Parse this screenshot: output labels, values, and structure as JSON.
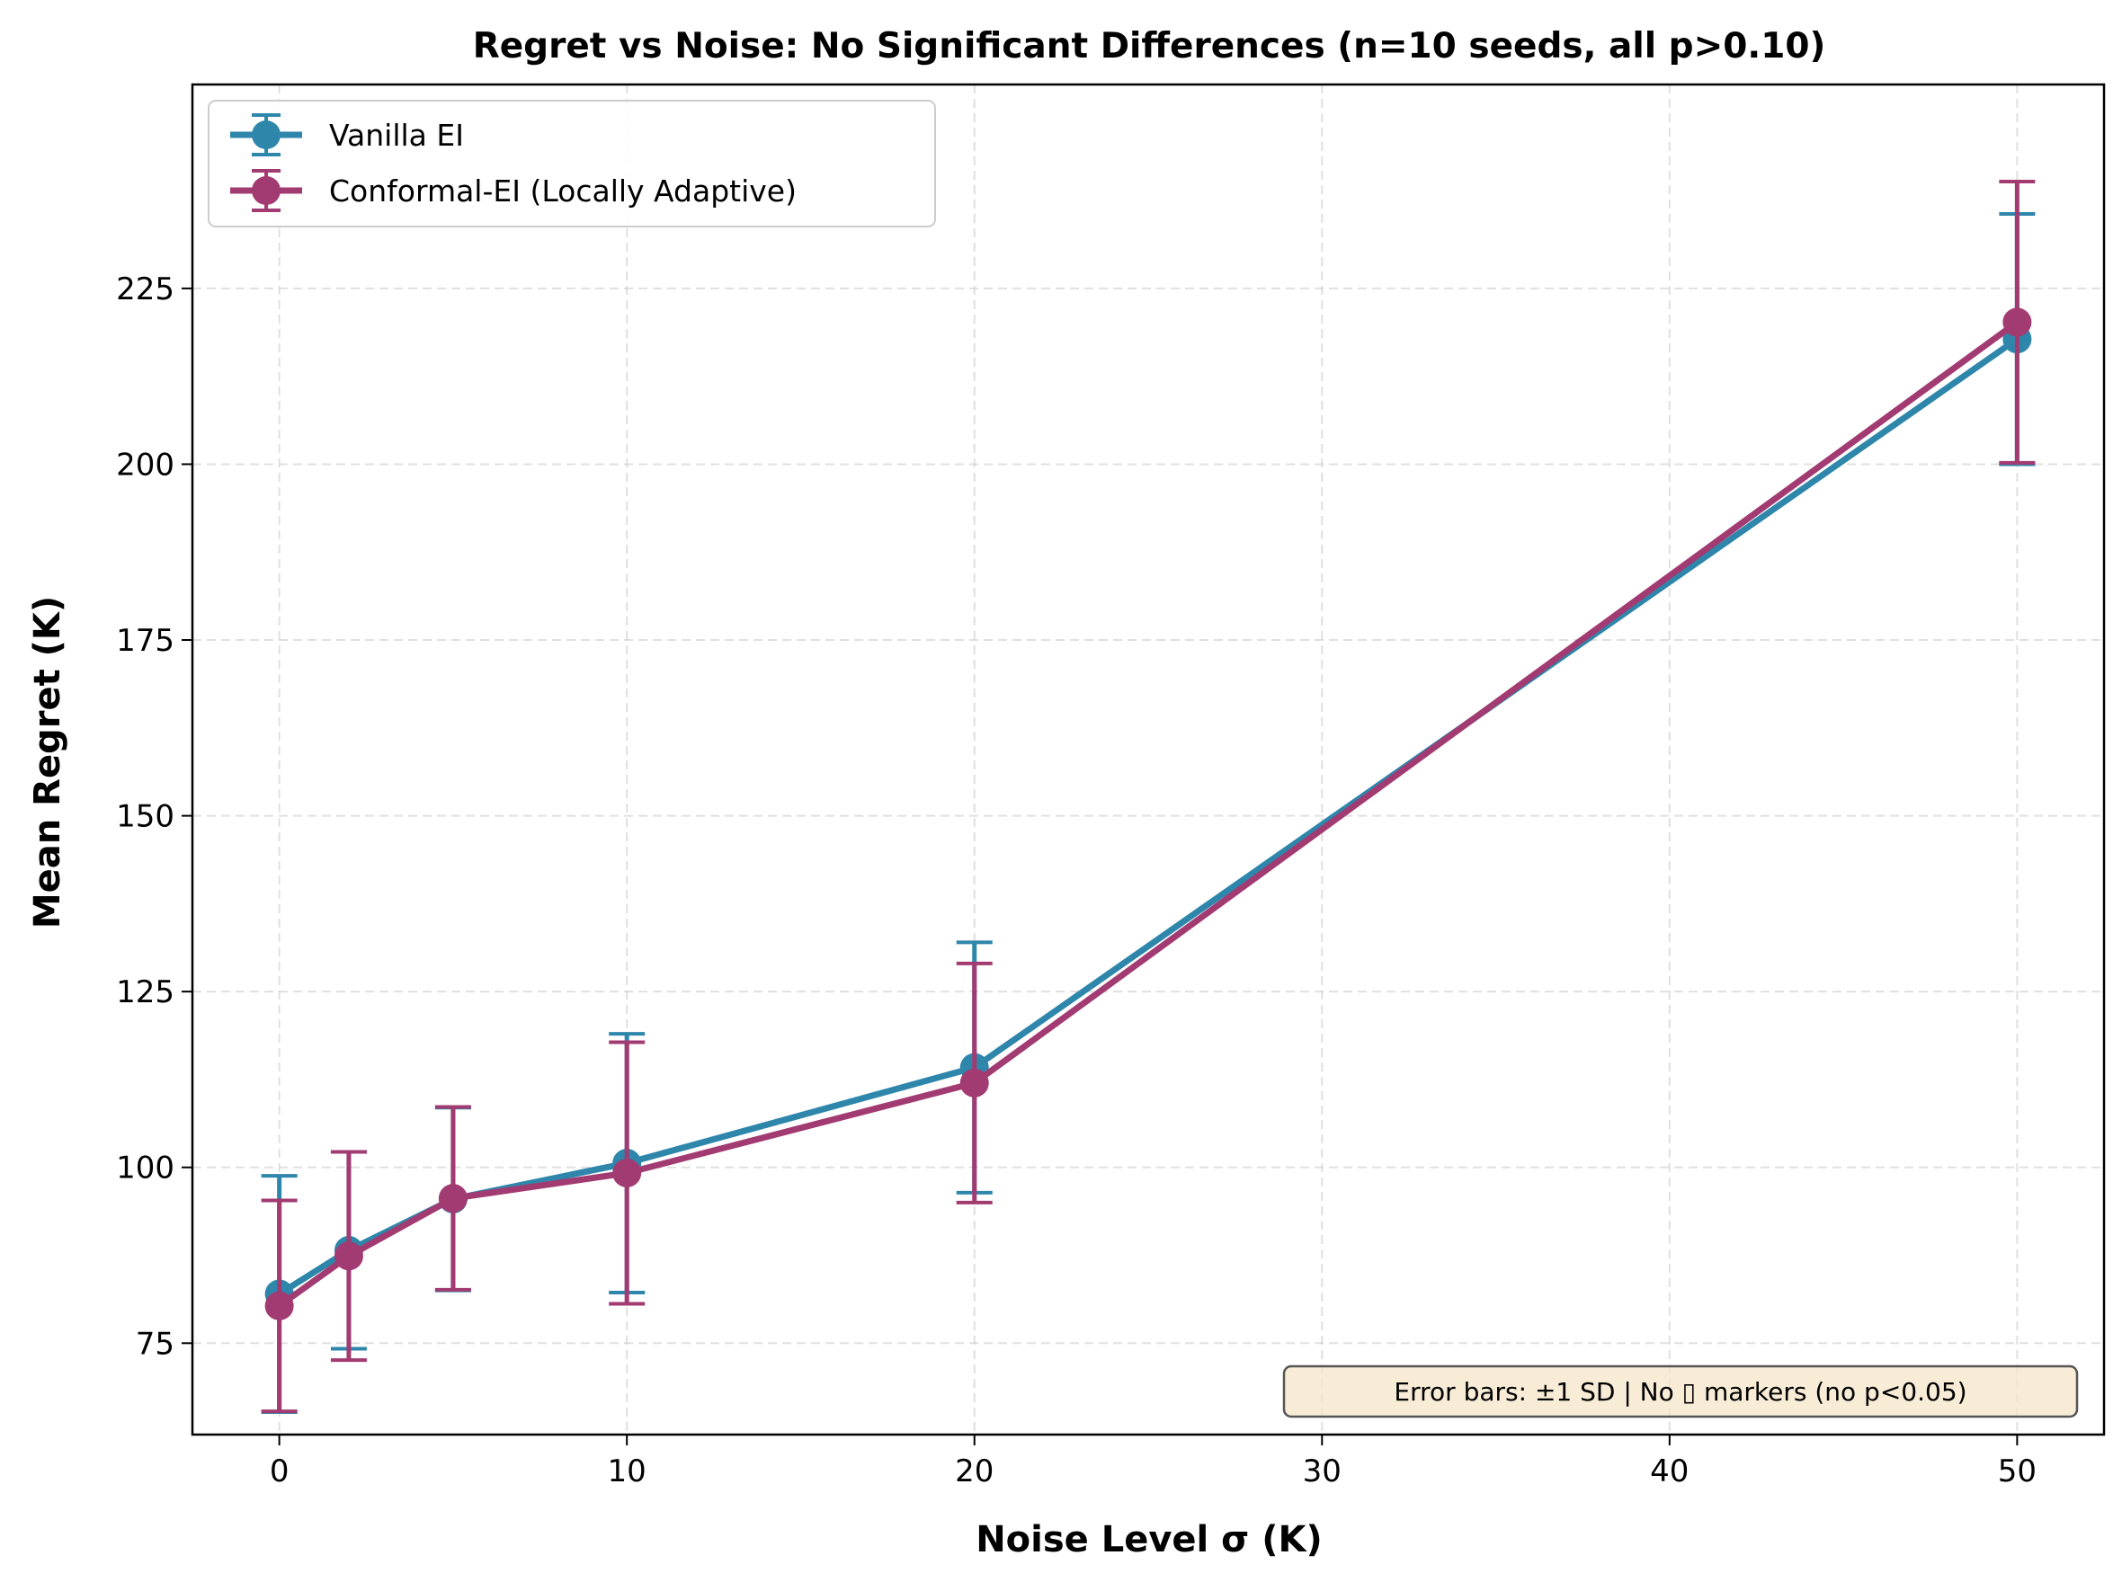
{
  "chart_data": {
    "type": "line",
    "title": "Regret vs Noise: No Significant Differences (n=10 seeds, all p>0.10)",
    "xlabel": "Noise Level σ (K)",
    "ylabel": "Mean Regret (K)",
    "xlim": [
      -2.5,
      52.5
    ],
    "ylim": [
      62,
      254
    ],
    "xticks": [
      0,
      10,
      20,
      30,
      40,
      50
    ],
    "yticks": [
      75,
      100,
      125,
      150,
      175,
      200,
      225
    ],
    "grid": true,
    "legend_position": "top-left",
    "x": [
      0,
      2,
      5,
      10,
      20,
      50
    ],
    "series": [
      {
        "name": "Vanilla EI",
        "color": "#2e86ab",
        "values": [
          82,
          88.2,
          95.5,
          100.6,
          114.2,
          217.8
        ],
        "error_sd": [
          16.8,
          14,
          13,
          18.4,
          17.8,
          17.8
        ]
      },
      {
        "name": "Conformal-EI (Locally Adaptive)",
        "color": "#a23b72",
        "values": [
          80.3,
          87.4,
          95.6,
          99.2,
          112,
          220.2
        ],
        "error_sd": [
          15,
          14.8,
          13,
          18.6,
          17,
          20
        ]
      }
    ],
    "annotation": "Error bars: ±1 SD | No ▯ markers (no p<0.05)"
  }
}
